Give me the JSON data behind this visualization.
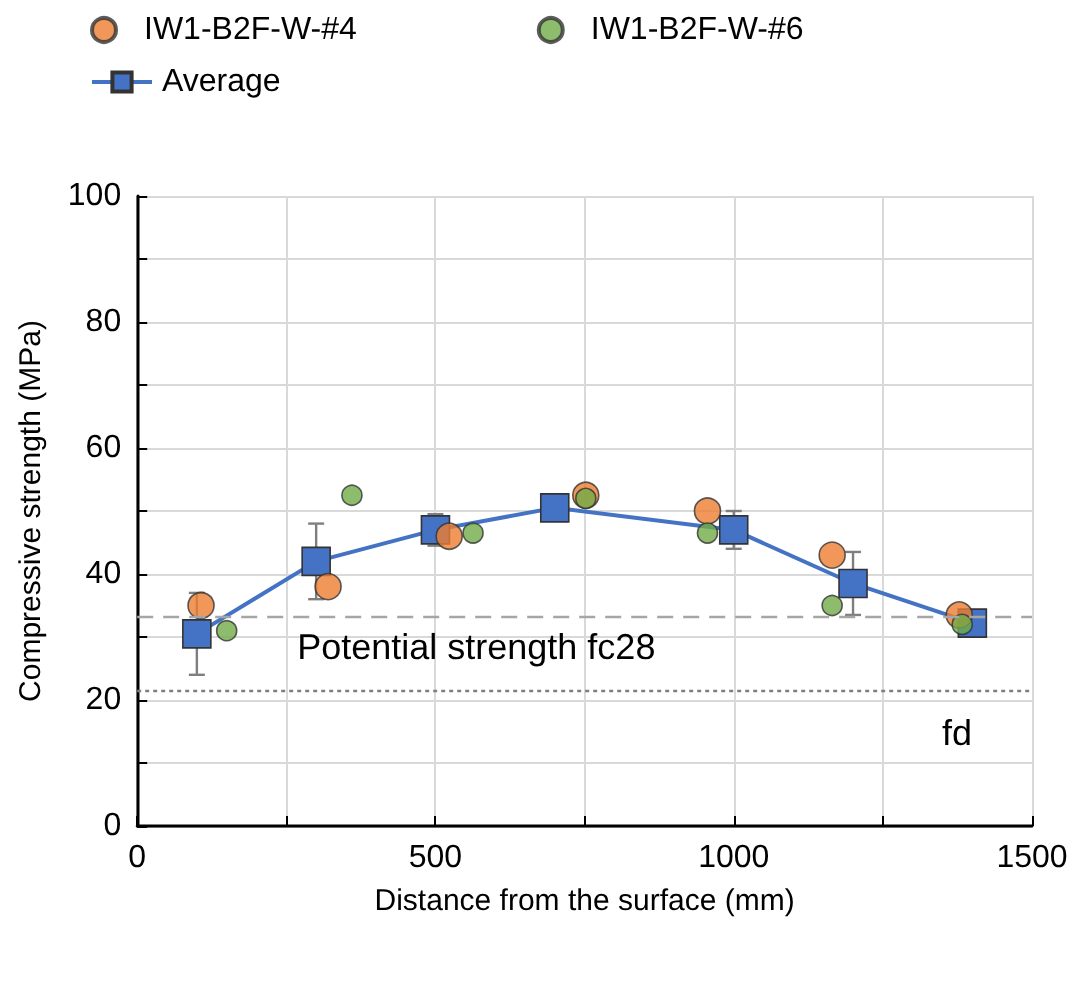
{
  "chart_data": {
    "type": "scatter",
    "xlabel": "Distance from the surface (mm)",
    "ylabel": "Compressive strength (MPa)",
    "xlim": [
      0,
      1500
    ],
    "xticks": [
      0,
      {
        "value": 250,
        "label": null
      },
      500,
      {
        "value": 750,
        "label": null
      },
      1000,
      {
        "value": 1250,
        "label": null
      },
      1500
    ],
    "ylim": [
      0,
      100
    ],
    "yticks": [
      0,
      {
        "value": 10,
        "label": null
      },
      20,
      {
        "value": 30,
        "label": null
      },
      40,
      {
        "value": 50,
        "label": null
      },
      60,
      {
        "value": 70,
        "label": null
      },
      80,
      {
        "value": 90,
        "label": null
      },
      100
    ],
    "grid": true,
    "legend": "top",
    "marker": "circle",
    "series": [
      {
        "name": "IW1-B2F-W-#4",
        "color": "#ed7d31",
        "x": [
          107,
          320,
          523,
          752,
          956,
          1165,
          1378
        ],
        "values": [
          35,
          38,
          46,
          52.5,
          50,
          43,
          33.5
        ]
      },
      {
        "name": "IW1-B2F-W-#6",
        "color": "#70ad47",
        "x": [
          150,
          360,
          563,
          752,
          956,
          1165,
          1383
        ],
        "values": [
          31,
          52.5,
          46.5,
          52,
          46.5,
          35,
          32
        ]
      },
      {
        "name": "Average",
        "type": "line",
        "color": "#4472c4",
        "marker": "square",
        "line_style": "solid",
        "x": [
          100,
          300,
          500,
          700,
          1000,
          1200,
          1400
        ],
        "values": [
          30.5,
          42,
          47,
          50.5,
          47,
          38.5,
          32.2
        ],
        "errors": [
          6.5,
          6,
          2.5,
          null,
          3,
          5,
          null
        ]
      }
    ],
    "ref_lines": [
      {
        "axis": "y",
        "value": 33.2,
        "label": "Potential strength fc28",
        "color": "#a6a6a6",
        "line_style": "dashed"
      },
      {
        "axis": "y",
        "value": 21.5,
        "label": "fd",
        "color": "#7f7f7f",
        "line_style": "dotted"
      }
    ]
  }
}
